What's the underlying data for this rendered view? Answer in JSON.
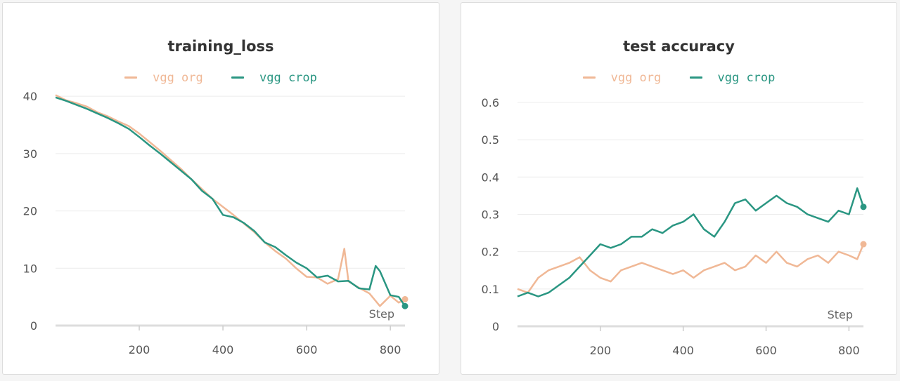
{
  "colors": {
    "vgg_org": "#f0b896",
    "vgg_crop": "#2a9682"
  },
  "chart_data": [
    {
      "type": "line",
      "title": "training_loss",
      "xlabel": "Step",
      "ylabel": "",
      "xlim": [
        0,
        835
      ],
      "ylim": [
        0,
        41
      ],
      "xticks": [
        200,
        400,
        600,
        800
      ],
      "yticks": [
        0,
        10,
        20,
        30,
        40
      ],
      "ytick_labels": [
        "0",
        "10",
        "20",
        "30",
        "40"
      ],
      "grid": true,
      "legend_position": "top-center",
      "series": [
        {
          "name": "vgg org",
          "color": "#f0b896",
          "x": [
            0,
            25,
            50,
            75,
            100,
            125,
            150,
            175,
            200,
            225,
            250,
            275,
            300,
            325,
            350,
            375,
            400,
            425,
            450,
            475,
            500,
            525,
            550,
            575,
            600,
            625,
            650,
            675,
            690,
            700,
            725,
            750,
            775,
            800,
            820,
            835
          ],
          "y": [
            40.2,
            39.3,
            38.8,
            38.2,
            37.2,
            36.5,
            35.6,
            34.8,
            33.5,
            32,
            30.5,
            28.9,
            27.3,
            25.5,
            23.8,
            22.1,
            20.7,
            19.3,
            17.8,
            16.3,
            14.5,
            13,
            11.7,
            10,
            8.5,
            8.4,
            7.3,
            8.1,
            13.4,
            7.7,
            6.6,
            5.6,
            3.4,
            5.2,
            4,
            4.6
          ]
        },
        {
          "name": "vgg crop",
          "color": "#2a9682",
          "x": [
            0,
            25,
            50,
            75,
            100,
            125,
            150,
            175,
            200,
            225,
            250,
            275,
            300,
            325,
            350,
            375,
            400,
            425,
            450,
            475,
            500,
            525,
            550,
            575,
            600,
            625,
            650,
            675,
            700,
            725,
            750,
            765,
            775,
            800,
            820,
            835
          ],
          "y": [
            39.8,
            39.2,
            38.5,
            37.8,
            37,
            36.2,
            35.3,
            34.3,
            32.9,
            31.4,
            30,
            28.5,
            27,
            25.5,
            23.5,
            22.1,
            19.3,
            18.9,
            17.9,
            16.5,
            14.5,
            13.7,
            12.3,
            11,
            10,
            8.4,
            8.7,
            7.7,
            7.8,
            6.5,
            6.3,
            10.4,
            9.5,
            5.3,
            5,
            3.4
          ]
        }
      ]
    },
    {
      "type": "line",
      "title": "test accuracy",
      "xlabel": "Step",
      "ylabel": "",
      "xlim": [
        0,
        835
      ],
      "ylim": [
        0,
        0.63
      ],
      "xticks": [
        200,
        400,
        600,
        800
      ],
      "yticks": [
        0,
        0.1,
        0.2,
        0.3,
        0.4,
        0.5,
        0.6
      ],
      "ytick_labels": [
        "0",
        "0.1",
        "0.2",
        "0.3",
        "0.4",
        "0.5",
        "0.6"
      ],
      "grid": true,
      "legend_position": "top-center",
      "series": [
        {
          "name": "vgg org",
          "color": "#f0b896",
          "x": [
            0,
            25,
            50,
            75,
            100,
            125,
            150,
            175,
            200,
            225,
            250,
            275,
            300,
            325,
            350,
            375,
            400,
            425,
            450,
            475,
            500,
            525,
            550,
            575,
            600,
            625,
            650,
            675,
            700,
            725,
            750,
            775,
            800,
            820,
            835
          ],
          "y": [
            0.1,
            0.09,
            0.13,
            0.15,
            0.16,
            0.17,
            0.185,
            0.15,
            0.13,
            0.12,
            0.15,
            0.16,
            0.17,
            0.16,
            0.15,
            0.14,
            0.15,
            0.13,
            0.15,
            0.16,
            0.17,
            0.15,
            0.16,
            0.19,
            0.17,
            0.2,
            0.17,
            0.16,
            0.18,
            0.19,
            0.17,
            0.2,
            0.19,
            0.18,
            0.22
          ]
        },
        {
          "name": "vgg crop",
          "color": "#2a9682",
          "x": [
            0,
            25,
            50,
            75,
            100,
            125,
            150,
            175,
            200,
            225,
            250,
            275,
            300,
            325,
            350,
            375,
            400,
            425,
            450,
            475,
            500,
            525,
            550,
            575,
            600,
            625,
            650,
            675,
            700,
            725,
            750,
            775,
            800,
            820,
            835
          ],
          "y": [
            0.08,
            0.09,
            0.08,
            0.09,
            0.11,
            0.13,
            0.16,
            0.19,
            0.22,
            0.21,
            0.22,
            0.24,
            0.24,
            0.26,
            0.25,
            0.27,
            0.28,
            0.3,
            0.26,
            0.24,
            0.28,
            0.33,
            0.34,
            0.31,
            0.33,
            0.35,
            0.33,
            0.32,
            0.3,
            0.29,
            0.28,
            0.31,
            0.3,
            0.37,
            0.32
          ]
        }
      ]
    }
  ]
}
